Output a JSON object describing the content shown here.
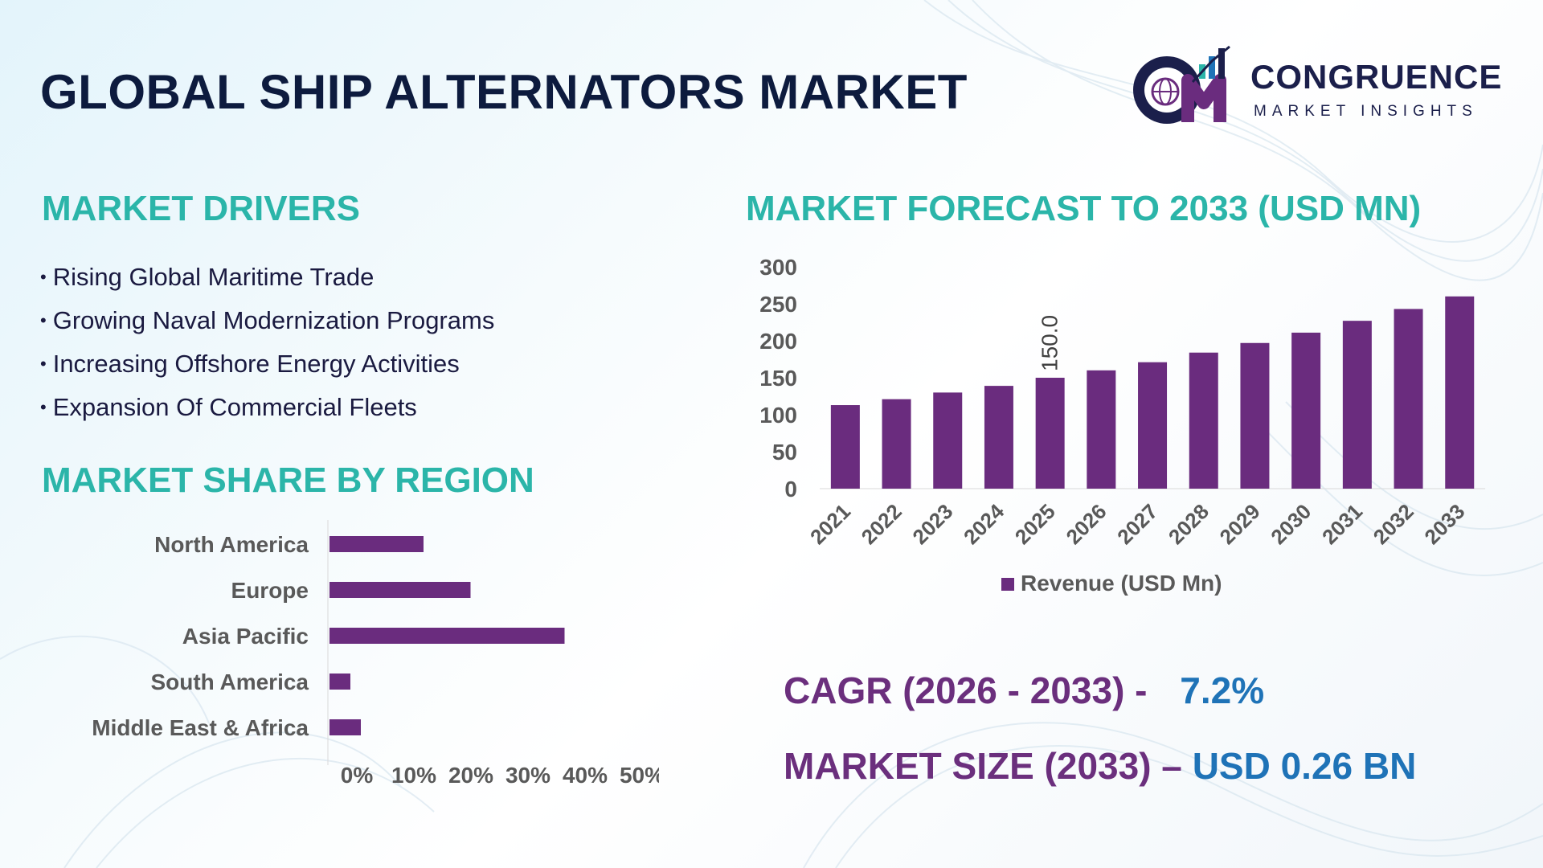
{
  "title": "GLOBAL SHIP ALTERNATORS MARKET",
  "logo": {
    "name": "CONGRUENCE",
    "subtitle": "MARKET INSIGHTS",
    "icon": "globe-bar-chart-logo"
  },
  "drivers": {
    "heading": "MARKET DRIVERS",
    "items": [
      "Rising Global Maritime Trade",
      "Growing Naval Modernization Programs",
      "Increasing Offshore Energy Activities",
      "Expansion Of Commercial Fleets"
    ]
  },
  "region": {
    "heading": "MARKET SHARE BY REGION"
  },
  "forecast": {
    "heading": "MARKET FORECAST TO 2033 (USD MN)"
  },
  "stats": {
    "cagr_label": "CAGR (2026 - 2033) -",
    "cagr_value": "7.2%",
    "size_label": "MARKET SIZE (2033) –",
    "size_value": "USD 0.26 BN"
  },
  "colors": {
    "bar": "#6a2c7e",
    "heading": "#2bb5a9",
    "stat_label": "#6b2f7d",
    "stat_value": "#1f73b7",
    "title": "#0d1b3e"
  },
  "chart_data": [
    {
      "type": "bar",
      "orientation": "horizontal",
      "categories": [
        "North America",
        "Europe",
        "Asia Pacific",
        "South America",
        "Middle East & Africa"
      ],
      "values": [
        18,
        27,
        45,
        4,
        6
      ],
      "xlim": [
        0,
        50
      ],
      "xticks": [
        "0%",
        "10%",
        "20%",
        "30%",
        "40%",
        "50%"
      ],
      "grid": false
    },
    {
      "type": "bar",
      "categories": [
        "2021",
        "2022",
        "2023",
        "2024",
        "2025",
        "2026",
        "2027",
        "2028",
        "2029",
        "2030",
        "2031",
        "2032",
        "2033"
      ],
      "series": [
        {
          "name": "Revenue (USD Mn)",
          "values": [
            113,
            121,
            130,
            139,
            150,
            160,
            171,
            184,
            197,
            211,
            227,
            243,
            260
          ]
        }
      ],
      "ylim": [
        0,
        300
      ],
      "yticks": [
        "0",
        "50",
        "100",
        "150",
        "200",
        "250",
        "300"
      ],
      "data_labels": [
        {
          "category": "2025",
          "text": "150.0"
        }
      ],
      "legend": "bottom",
      "grid": false
    }
  ]
}
